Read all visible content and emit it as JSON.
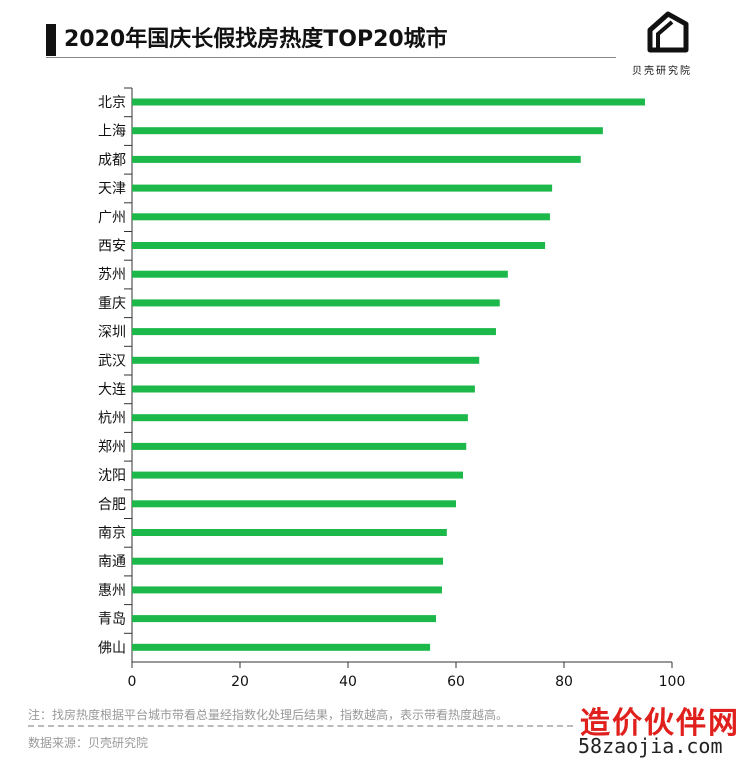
{
  "header": {
    "title": "2020年国庆长假找房热度TOP20城市",
    "logo_text": "贝壳研究院"
  },
  "footer": {
    "note": "注：找房热度根据平台城市带看总量经指数化处理后结果，指数越高，表示带看热度越高。",
    "source": "数据来源：贝壳研究院"
  },
  "watermark": {
    "line1": "造价伙伴网",
    "line2": "58zaojia.com"
  },
  "chart_data": {
    "type": "bar",
    "orientation": "horizontal",
    "title": "2020年国庆长假找房热度TOP20城市",
    "categories": [
      "北京",
      "上海",
      "成都",
      "天津",
      "广州",
      "西安",
      "苏州",
      "重庆",
      "深圳",
      "武汉",
      "大连",
      "杭州",
      "郑州",
      "沈阳",
      "合肥",
      "南京",
      "南通",
      "惠州",
      "青岛",
      "佛山"
    ],
    "values": [
      95.0,
      87.2,
      83.1,
      77.8,
      77.4,
      76.5,
      69.6,
      68.1,
      67.4,
      64.3,
      63.5,
      62.2,
      61.9,
      61.3,
      60.0,
      58.3,
      57.6,
      57.4,
      56.3,
      55.2
    ],
    "xlim": [
      0,
      100
    ],
    "xticks": [
      "0",
      "20",
      "40",
      "60",
      "80",
      "100"
    ],
    "bar_color": "#1db84a",
    "grid": false
  }
}
